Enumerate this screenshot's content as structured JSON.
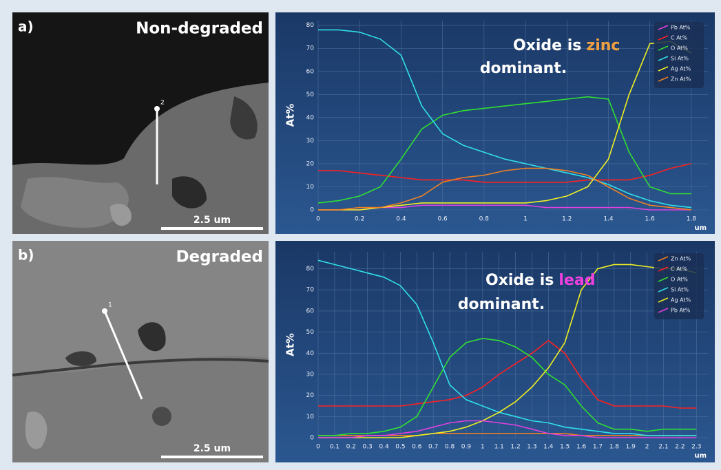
{
  "panels": [
    {
      "label": "a)",
      "title": "Non-degraded",
      "scale_bar": "2.5 um",
      "marker": "2"
    },
    {
      "label": "b)",
      "title": "Degraded",
      "scale_bar": "2.5 um",
      "marker": "1"
    }
  ],
  "chart_data": [
    {
      "type": "line",
      "annotation": [
        "Oxide is",
        "zinc",
        "dominant."
      ],
      "highlight_color": "#f0a040",
      "ylabel": "At%",
      "xlabel": "um",
      "x": [
        0,
        0.1,
        0.2,
        0.3,
        0.4,
        0.5,
        0.6,
        0.7,
        0.8,
        0.9,
        1,
        1.1,
        1.2,
        1.3,
        1.4,
        1.5,
        1.6,
        1.7,
        1.8
      ],
      "xlim": [
        0,
        1.88
      ],
      "ylim": [
        0,
        82
      ],
      "xticks": [
        0,
        0.2,
        0.4,
        0.6,
        0.8,
        1,
        1.2,
        1.4,
        1.6,
        1.8
      ],
      "yticks": [
        0,
        10,
        20,
        30,
        40,
        50,
        60,
        70,
        80
      ],
      "grid": true,
      "series": [
        {
          "name": "Pb At%",
          "color": "#e040e0",
          "values": [
            0,
            0,
            0,
            1,
            1,
            2,
            2,
            2,
            2,
            2,
            2,
            1,
            1,
            1,
            1,
            1,
            0,
            0,
            0
          ]
        },
        {
          "name": "C At%",
          "color": "#ff2020",
          "values": [
            17,
            17,
            16,
            15,
            14,
            13,
            13,
            13,
            12,
            12,
            12,
            12,
            12,
            13,
            13,
            13,
            15,
            18,
            20
          ]
        },
        {
          "name": "O At%",
          "color": "#30e030",
          "values": [
            3,
            4,
            6,
            10,
            22,
            35,
            41,
            43,
            44,
            45,
            46,
            47,
            48,
            49,
            48,
            25,
            10,
            7,
            7
          ]
        },
        {
          "name": "Si At%",
          "color": "#30e0e8",
          "values": [
            78,
            78,
            77,
            74,
            67,
            45,
            33,
            28,
            25,
            22,
            20,
            18,
            16,
            14,
            11,
            7,
            4,
            2,
            1
          ]
        },
        {
          "name": "Ag At%",
          "color": "#f0f020",
          "values": [
            0,
            0,
            0,
            1,
            2,
            3,
            3,
            3,
            3,
            3,
            3,
            4,
            6,
            10,
            22,
            50,
            72,
            73,
            68
          ]
        },
        {
          "name": "Zn At%",
          "color": "#f08020",
          "values": [
            0,
            0,
            1,
            1,
            3,
            6,
            12,
            14,
            15,
            17,
            18,
            18,
            17,
            15,
            10,
            5,
            2,
            1,
            0
          ]
        }
      ]
    },
    {
      "type": "line",
      "annotation": [
        "Oxide is",
        "lead",
        "dominant."
      ],
      "highlight_color": "#f040e0",
      "ylabel": "At%",
      "xlabel": "um",
      "x": [
        0,
        0.1,
        0.2,
        0.3,
        0.4,
        0.5,
        0.6,
        0.7,
        0.8,
        0.9,
        1,
        1.1,
        1.2,
        1.3,
        1.4,
        1.5,
        1.6,
        1.7,
        1.8,
        1.9,
        2,
        2.1,
        2.2,
        2.3
      ],
      "xlim": [
        0,
        2.37
      ],
      "ylim": [
        0,
        88
      ],
      "xticks": [
        0,
        0.1,
        0.2,
        0.3,
        0.4,
        0.5,
        0.6,
        0.7,
        0.8,
        0.9,
        1,
        1.1,
        1.2,
        1.3,
        1.4,
        1.5,
        1.6,
        1.7,
        1.8,
        1.9,
        2,
        2.1,
        2.2,
        2.3
      ],
      "yticks": [
        0,
        10,
        20,
        30,
        40,
        50,
        60,
        70,
        80
      ],
      "grid": true,
      "series": [
        {
          "name": "Zn At%",
          "color": "#f08020",
          "values": [
            1,
            1,
            1,
            1,
            1,
            1,
            1,
            2,
            2,
            2,
            2,
            2,
            2,
            2,
            2,
            2,
            1,
            1,
            1,
            1,
            1,
            1,
            1,
            1
          ]
        },
        {
          "name": "C At%",
          "color": "#ff2020",
          "values": [
            15,
            15,
            15,
            15,
            15,
            15,
            16,
            17,
            18,
            20,
            24,
            30,
            35,
            40,
            46,
            40,
            28,
            18,
            15,
            15,
            15,
            15,
            14,
            14
          ]
        },
        {
          "name": "O At%",
          "color": "#30e030",
          "values": [
            1,
            1,
            2,
            2,
            3,
            5,
            10,
            24,
            38,
            45,
            47,
            46,
            43,
            38,
            30,
            25,
            15,
            7,
            4,
            4,
            3,
            4,
            4,
            4
          ]
        },
        {
          "name": "Si At%",
          "color": "#30e0e8",
          "values": [
            84,
            82,
            80,
            78,
            76,
            72,
            63,
            45,
            25,
            18,
            15,
            12,
            10,
            8,
            7,
            5,
            4,
            3,
            2,
            2,
            1,
            1,
            1,
            1
          ]
        },
        {
          "name": "Ag At%",
          "color": "#f0f020",
          "values": [
            0,
            0,
            0,
            0,
            0,
            0,
            1,
            2,
            3,
            5,
            8,
            12,
            17,
            24,
            33,
            45,
            70,
            80,
            82,
            82,
            81,
            80,
            80,
            78
          ]
        },
        {
          "name": "Pb At%",
          "color": "#e040e0",
          "values": [
            0,
            0,
            0,
            1,
            1,
            2,
            3,
            5,
            7,
            8,
            8,
            7,
            6,
            4,
            2,
            1,
            1,
            0,
            0,
            0,
            0,
            0,
            0,
            0
          ]
        }
      ]
    }
  ]
}
